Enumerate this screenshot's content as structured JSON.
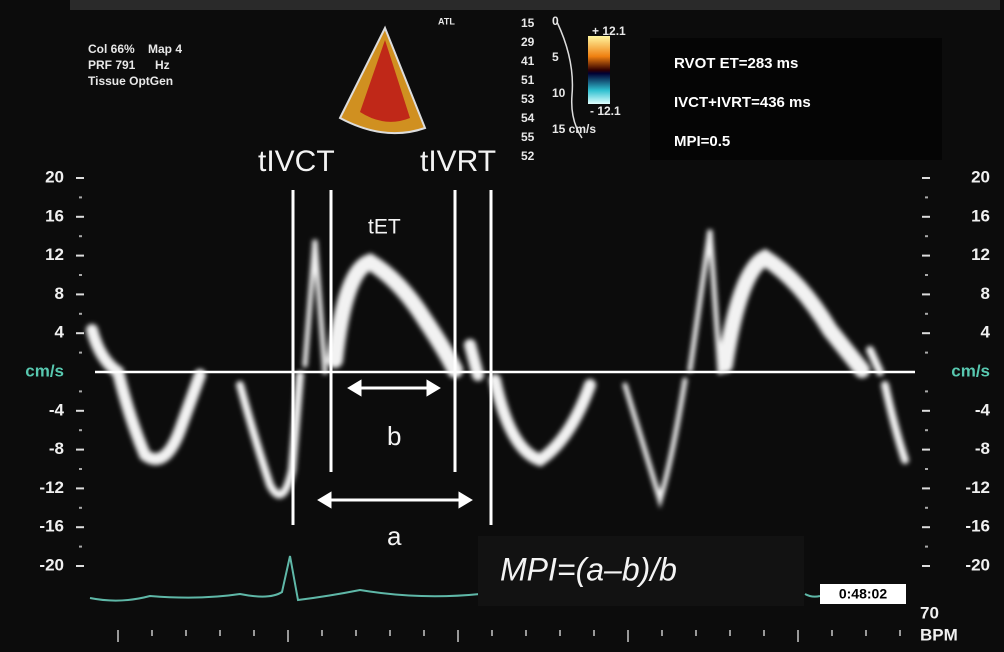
{
  "settings": {
    "line1": [
      "Col 66%",
      "Map 4"
    ],
    "line2": [
      "PRF 791",
      "Hz"
    ],
    "line3": "Tissue OptGen"
  },
  "probe": "ATL",
  "colorbar": {
    "left_numbers": [
      "15",
      "29",
      "41",
      "51",
      "53",
      "54",
      "55",
      "52"
    ],
    "scale": [
      "0",
      "5",
      "10",
      "15 cm/s"
    ],
    "top": "+ 12.1",
    "bottom": "- 12.1"
  },
  "measurements": [
    "RVOT ET=283 ms",
    "IVCT+IVRT=436 ms",
    "MPI=0.5"
  ],
  "annotations": {
    "ivct": "tIVCT",
    "ivrt": "tIVRT",
    "et": "tET",
    "b": "b",
    "a": "a",
    "formula": "MPI=(a–b)/b"
  },
  "scale": {
    "left": [
      20,
      16,
      12,
      8,
      4,
      "cm/s",
      -4,
      -8,
      -12,
      -16,
      -20
    ],
    "right": [
      20,
      16,
      12,
      8,
      4,
      "cm/s",
      -4,
      -8,
      -12,
      -16,
      -20
    ]
  },
  "footer": {
    "time": "0:48:02",
    "heart_rate": "70",
    "unit": "BPM"
  }
}
